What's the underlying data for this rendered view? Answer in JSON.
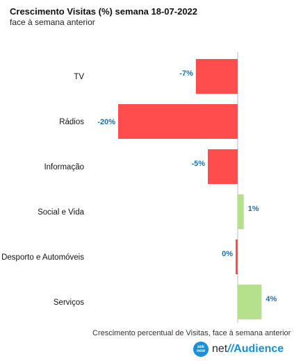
{
  "header": {
    "title": "Crescimento Visitas (%) semana 18-07-2022",
    "subtitle": "face à semana anterior"
  },
  "chart_data": {
    "type": "bar",
    "orientation": "horizontal",
    "title": "Crescimento Visitas (%) semana 18-07-2022",
    "subtitle": "face à semana anterior",
    "xlabel": "Crescimento percentual de Visitas, face à semana anterior",
    "ylabel": "",
    "categories": [
      "TV",
      "Rádios",
      "Informação",
      "Social e Vida",
      "Desporto e Automóveis",
      "Serviços"
    ],
    "values": [
      -7,
      -20,
      -5,
      1,
      0,
      4
    ],
    "data_labels": [
      "-7%",
      "-20%",
      "-5%",
      "1%",
      "0%",
      "4%"
    ],
    "xlim": [
      -20,
      4
    ],
    "grid": false,
    "colors": {
      "negative": "#ff4d4d",
      "positive": "#b5e08c",
      "label": "#1a6fb8",
      "axis": "#bbbbbb"
    }
  },
  "footer": {
    "note": "Crescimento percentual de Visitas, face à semana anterior",
    "logo_net": "net",
    "logo_slash": "//",
    "logo_audience": "Audience",
    "logo_badge": "ask\nnow"
  }
}
